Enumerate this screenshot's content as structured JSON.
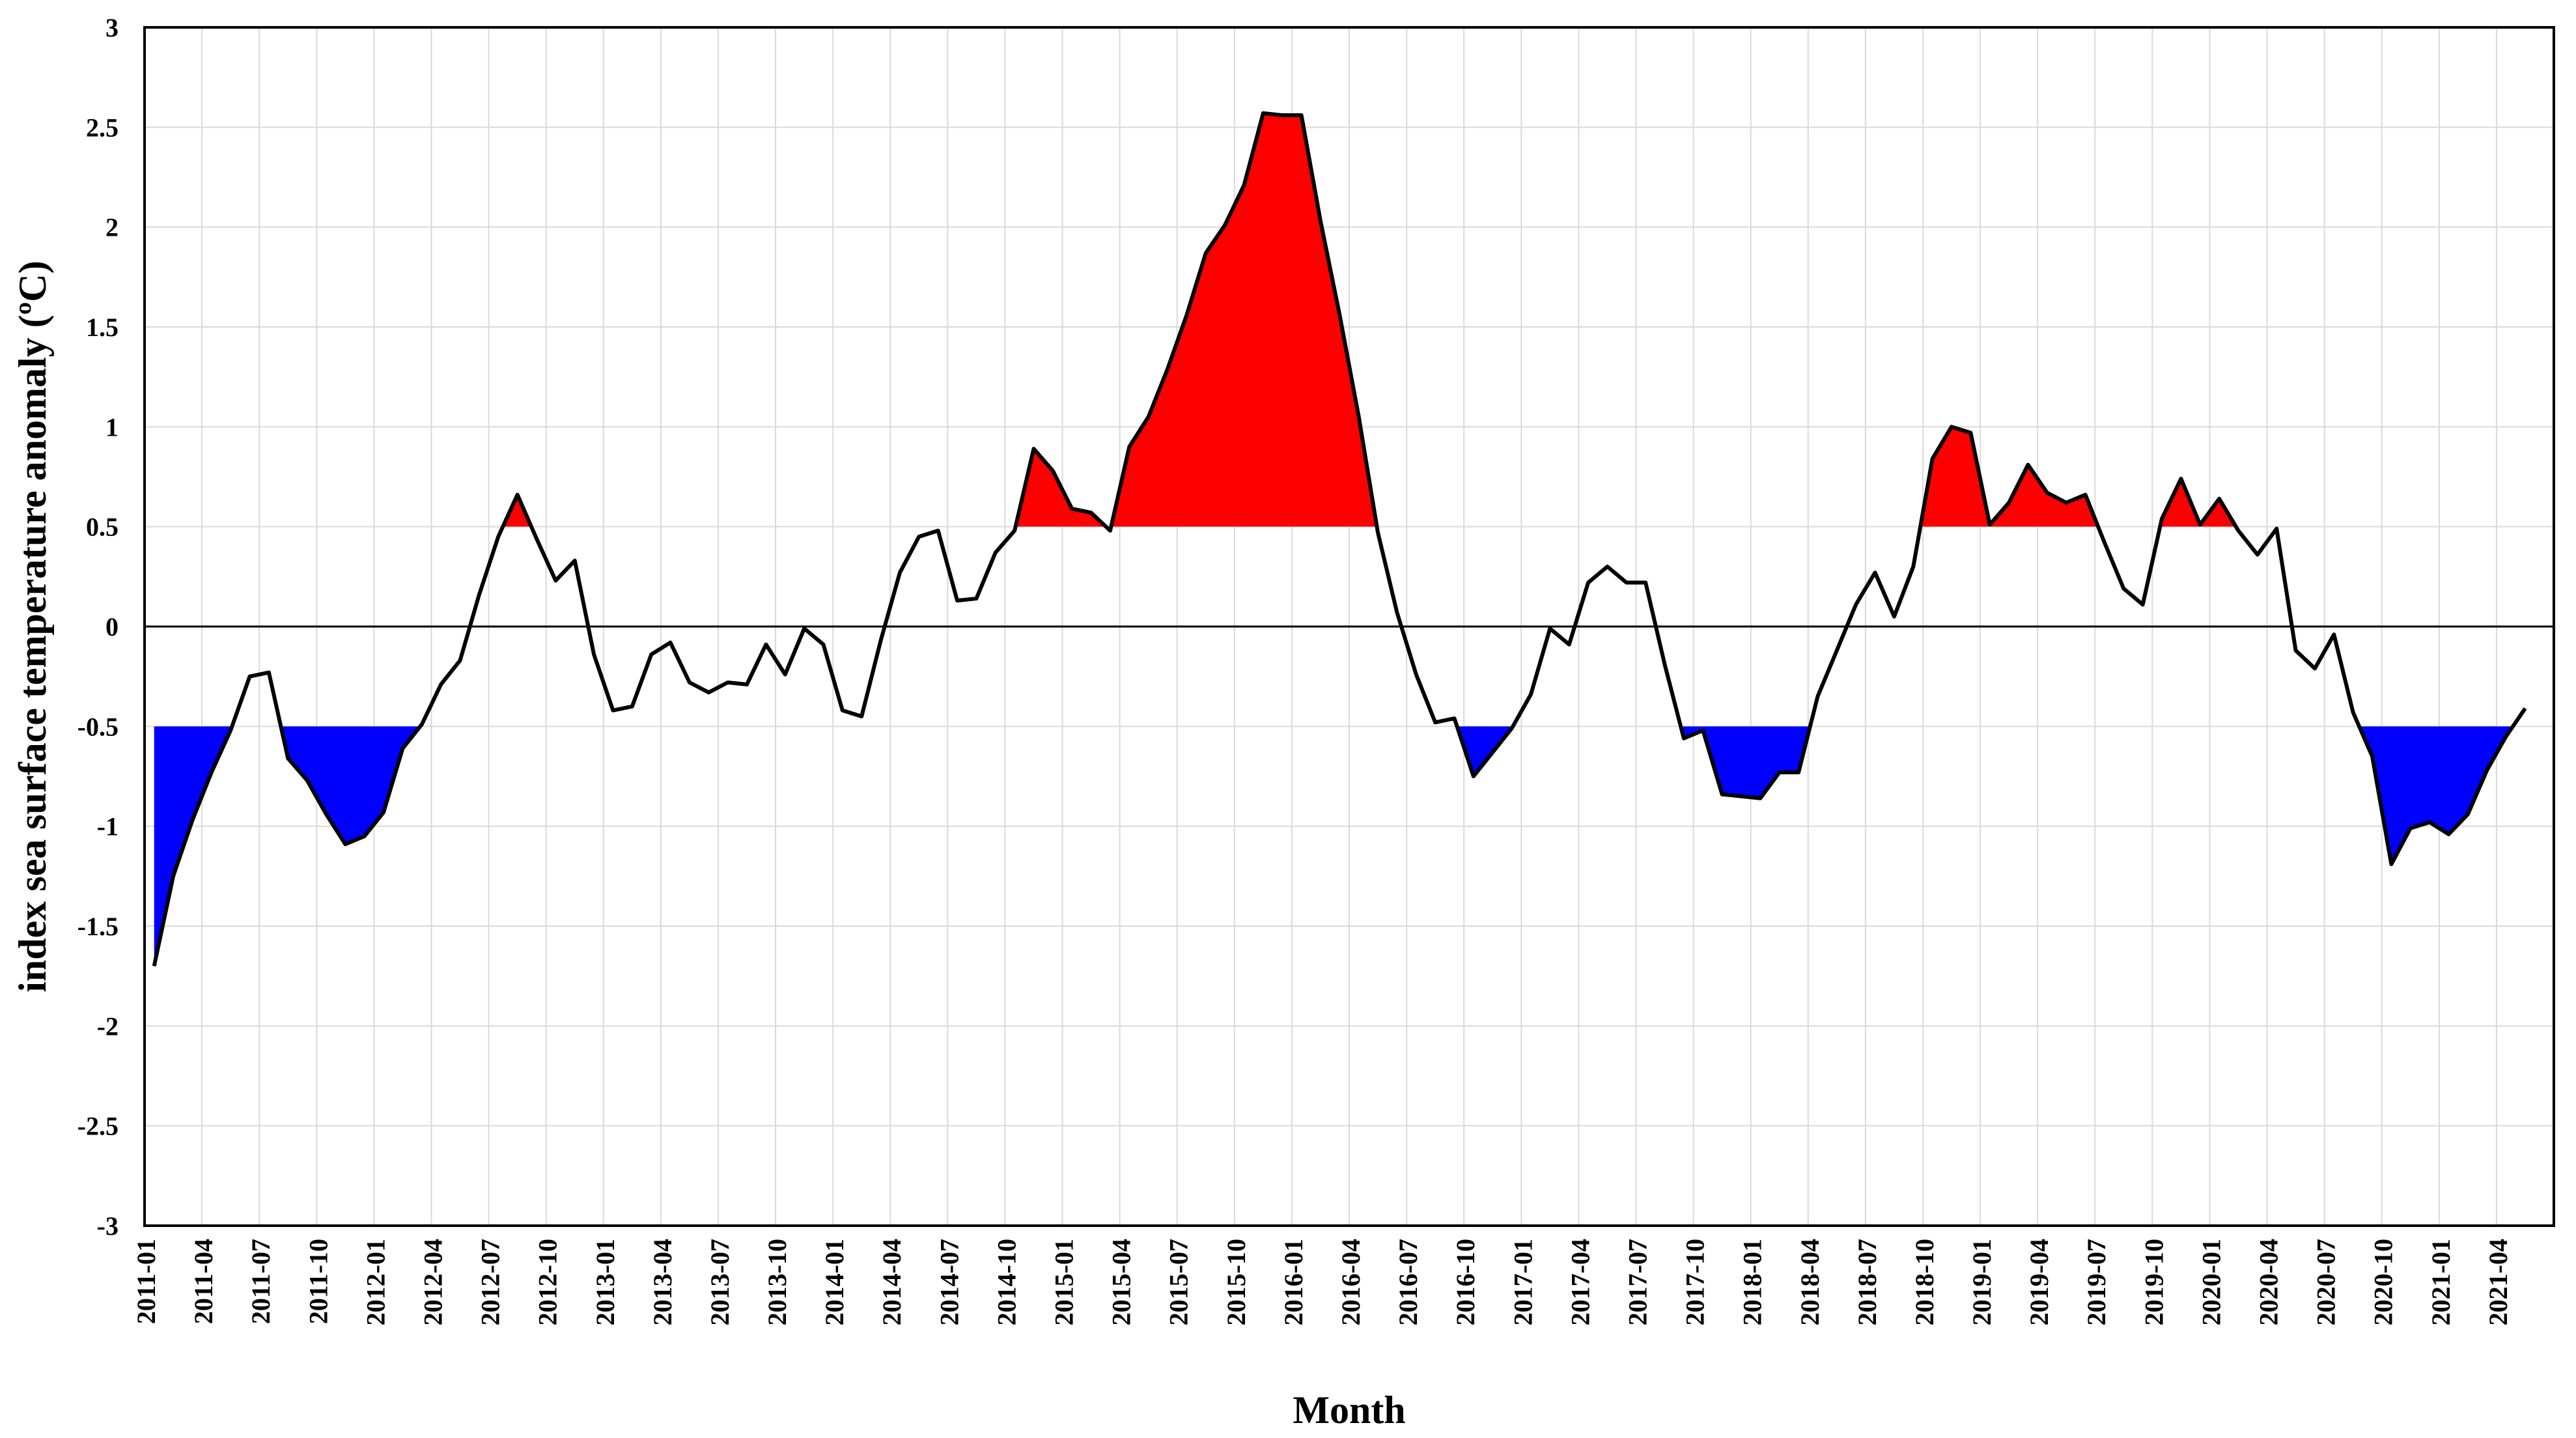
{
  "chart_data": {
    "type": "line",
    "xlabel": "Month",
    "ylabel": "index sea surface temperature anomaly (ºC)",
    "ylim": [
      -3,
      3
    ],
    "y_ticks": [
      "3",
      "2.5",
      "2",
      "1.5",
      "1",
      "0.5",
      "0",
      "-0.5",
      "-1",
      "-1.5",
      "-2",
      "-2.5",
      "-3"
    ],
    "x_tick_labels": [
      "2011-01",
      "2011-04",
      "2011-07",
      "2011-10",
      "2012-01",
      "2012-04",
      "2012-07",
      "2012-10",
      "2013-01",
      "2013-04",
      "2013-07",
      "2013-10",
      "2014-01",
      "2014-04",
      "2014-07",
      "2014-10",
      "2015-01",
      "2015-04",
      "2015-07",
      "2015-10",
      "2016-01",
      "2016-04",
      "2016-07",
      "2016-10",
      "2017-01",
      "2017-04",
      "2017-07",
      "2017-10",
      "2018-01",
      "2018-04",
      "2018-07",
      "2018-10",
      "2019-01",
      "2019-04",
      "2019-07",
      "2019-10",
      "2020-01",
      "2020-04",
      "2020-07",
      "2020-10",
      "2021-01",
      "2021-04"
    ],
    "grid": true,
    "thresholds": {
      "warm": 0.5,
      "cold": -0.5
    },
    "colors": {
      "line": "#000000",
      "warm_fill": "#ff0000",
      "cold_fill": "#0000ff",
      "grid": "#d9d9d9",
      "zero_line": "#000000"
    },
    "start_month": "2011-01",
    "values": [
      -1.7,
      -1.25,
      -0.97,
      -0.73,
      -0.52,
      -0.25,
      -0.23,
      -0.66,
      -0.77,
      -0.94,
      -1.09,
      -1.05,
      -0.93,
      -0.61,
      -0.49,
      -0.29,
      -0.17,
      0.16,
      0.45,
      0.66,
      0.44,
      0.23,
      0.33,
      -0.14,
      -0.42,
      -0.4,
      -0.14,
      -0.08,
      -0.28,
      -0.33,
      -0.28,
      -0.29,
      -0.09,
      -0.24,
      -0.01,
      -0.09,
      -0.42,
      -0.45,
      -0.07,
      0.27,
      0.45,
      0.48,
      0.13,
      0.14,
      0.37,
      0.48,
      0.89,
      0.78,
      0.59,
      0.57,
      0.48,
      0.9,
      1.05,
      1.29,
      1.56,
      1.87,
      2.01,
      2.21,
      2.57,
      2.56,
      2.56,
      2.03,
      1.56,
      1.05,
      0.47,
      0.07,
      -0.24,
      -0.48,
      -0.46,
      -0.75,
      -0.63,
      -0.51,
      -0.34,
      -0.01,
      -0.09,
      0.22,
      0.3,
      0.22,
      0.22,
      -0.19,
      -0.56,
      -0.52,
      -0.84,
      -0.85,
      -0.86,
      -0.73,
      -0.73,
      -0.35,
      -0.12,
      0.11,
      0.27,
      0.05,
      0.3,
      0.84,
      1.0,
      0.97,
      0.51,
      0.62,
      0.81,
      0.67,
      0.62,
      0.66,
      0.42,
      0.19,
      0.11,
      0.54,
      0.74,
      0.51,
      0.64,
      0.48,
      0.36,
      0.49,
      -0.12,
      -0.21,
      -0.04,
      -0.43,
      -0.65,
      -1.19,
      -1.01,
      -0.98,
      -1.04,
      -0.94,
      -0.72,
      -0.55,
      -0.41
    ]
  }
}
